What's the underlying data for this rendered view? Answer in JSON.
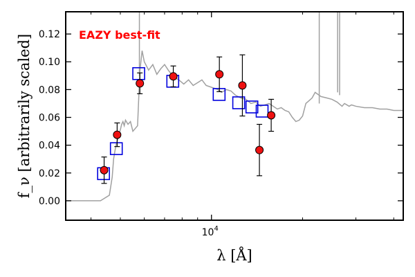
{
  "chart_data": {
    "type": "scatter",
    "xscale": "log",
    "xlim": [
      3300,
      43000
    ],
    "ylim": [
      -0.014,
      0.136
    ],
    "ylabel": "f_ν [arbitrarily scaled]",
    "xlabel": "λ [Å]",
    "annotation": "EAZY best-fit",
    "annotation_color": "#ff0000",
    "y_ticks": [
      0.0,
      0.02,
      0.04,
      0.06,
      0.08,
      0.1,
      0.12
    ],
    "y_tick_labels": [
      "0.00",
      "0.02",
      "0.04",
      "0.06",
      "0.08",
      "0.10",
      "0.12"
    ],
    "x_major_tick": 10000,
    "x_major_tick_label_base": "10",
    "x_major_tick_label_exp": "4",
    "x_minor_ticks": [
      4000,
      5000,
      6000,
      7000,
      8000,
      9000,
      20000,
      30000,
      40000
    ],
    "colors": {
      "sed": "#a0a0a0",
      "model": "#0000dd",
      "observed": "#ee1111",
      "errorbar": "#000000"
    },
    "sed": {
      "x": [
        3300,
        3800,
        4300,
        4600,
        4700,
        4750,
        4800,
        4850,
        4900,
        4950,
        5000,
        5050,
        5100,
        5150,
        5200,
        5300,
        5400,
        5500,
        5600,
        5700,
        5800,
        5900,
        6000,
        6200,
        6400,
        6600,
        6800,
        7000,
        7200,
        7500,
        7800,
        8100,
        8400,
        8700,
        9000,
        9300,
        9600,
        9900,
        10200,
        10500,
        10800,
        11200,
        11600,
        12000,
        12500,
        13000,
        13500,
        14000,
        14500,
        15000,
        15500,
        16000,
        16500,
        17000,
        17500,
        18000,
        18500,
        19000,
        19500,
        20000,
        20500,
        21000,
        21500,
        22000,
        23000,
        24000,
        25000,
        26000,
        27000,
        27500,
        28000,
        28500,
        29000,
        30000,
        32000,
        34000,
        36000,
        38000,
        40000,
        43000
      ],
      "y": [
        0.0,
        0.0,
        0.0,
        0.004,
        0.017,
        0.03,
        0.036,
        0.041,
        0.044,
        0.048,
        0.051,
        0.055,
        0.057,
        0.054,
        0.058,
        0.055,
        0.057,
        0.05,
        0.052,
        0.054,
        0.093,
        0.108,
        0.1,
        0.094,
        0.098,
        0.091,
        0.095,
        0.098,
        0.094,
        0.089,
        0.087,
        0.084,
        0.087,
        0.083,
        0.085,
        0.087,
        0.083,
        0.082,
        0.081,
        0.08,
        0.078,
        0.08,
        0.079,
        0.076,
        0.074,
        0.073,
        0.07,
        0.071,
        0.068,
        0.069,
        0.07,
        0.068,
        0.066,
        0.067,
        0.065,
        0.064,
        0.06,
        0.057,
        0.058,
        0.061,
        0.07,
        0.072,
        0.074,
        0.078,
        0.075,
        0.074,
        0.073,
        0.071,
        0.068,
        0.07,
        0.069,
        0.068,
        0.069,
        0.068,
        0.067,
        0.067,
        0.066,
        0.066,
        0.065,
        0.065
      ]
    },
    "model_photometry": {
      "x": [
        4400,
        4850,
        5750,
        7450,
        10600,
        12300,
        13600,
        14700
      ],
      "y": [
        0.0195,
        0.0375,
        0.0915,
        0.086,
        0.0765,
        0.0705,
        0.0675,
        0.0645
      ]
    },
    "observed_photometry": {
      "x": [
        4420,
        4880,
        5800,
        7480,
        10620,
        12650,
        14400,
        15750
      ],
      "y": [
        0.022,
        0.0475,
        0.0845,
        0.0895,
        0.091,
        0.083,
        0.0365,
        0.0615
      ],
      "yerr": [
        0.0095,
        0.0085,
        0.0075,
        0.0075,
        0.0125,
        0.022,
        0.0185,
        0.0115
      ]
    }
  }
}
